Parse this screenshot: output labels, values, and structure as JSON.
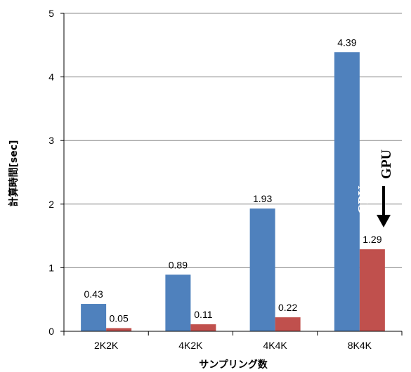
{
  "chart_data": {
    "type": "bar",
    "categories": [
      "2K2K",
      "4K2K",
      "4K4K",
      "8K4K"
    ],
    "series": [
      {
        "color": "#4F81BD",
        "values": [
          0.43,
          0.89,
          1.93,
          4.39
        ],
        "labels": [
          "0.43",
          "0.89",
          "1.93",
          "4.39"
        ]
      },
      {
        "color": "#C0504D",
        "values": [
          0.05,
          0.11,
          0.22,
          1.29
        ],
        "labels": [
          "0.05",
          "0.11",
          "0.22",
          "1.29"
        ]
      }
    ],
    "xlabel": "サンプリング数",
    "ylabel": "計算時間[sec]",
    "ylim": [
      0,
      5
    ],
    "yticks": [
      "0",
      "1",
      "2",
      "3",
      "4",
      "5"
    ],
    "grid": true,
    "annotations": {
      "cpu": "CPU",
      "gpu": "GPU"
    }
  }
}
